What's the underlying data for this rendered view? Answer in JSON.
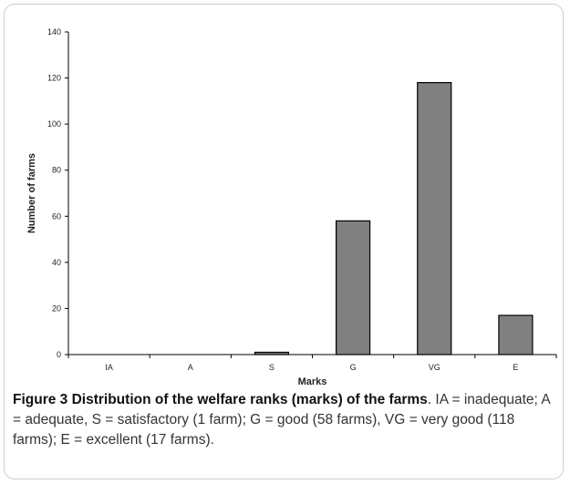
{
  "chart_data": {
    "type": "bar",
    "categories": [
      "IA",
      "A",
      "S",
      "G",
      "VG",
      "E"
    ],
    "values": [
      0,
      0,
      1,
      58,
      118,
      17
    ],
    "xlabel": "Marks",
    "ylabel": "Number of farms",
    "ylim": [
      0,
      140
    ],
    "yticks": [
      0,
      20,
      40,
      60,
      80,
      100,
      120,
      140
    ],
    "grid": false,
    "bar_color": "#808080"
  },
  "caption": {
    "title": "Figure 3 Distribution of the welfare ranks (marks) of the farms",
    "title_end": ".",
    "text": "IA = inadequate; A = adequate, S = satisfactory (1 farm); G = good (58 farms), VG = very good (118 farms); E = excellent (17 farms)."
  }
}
